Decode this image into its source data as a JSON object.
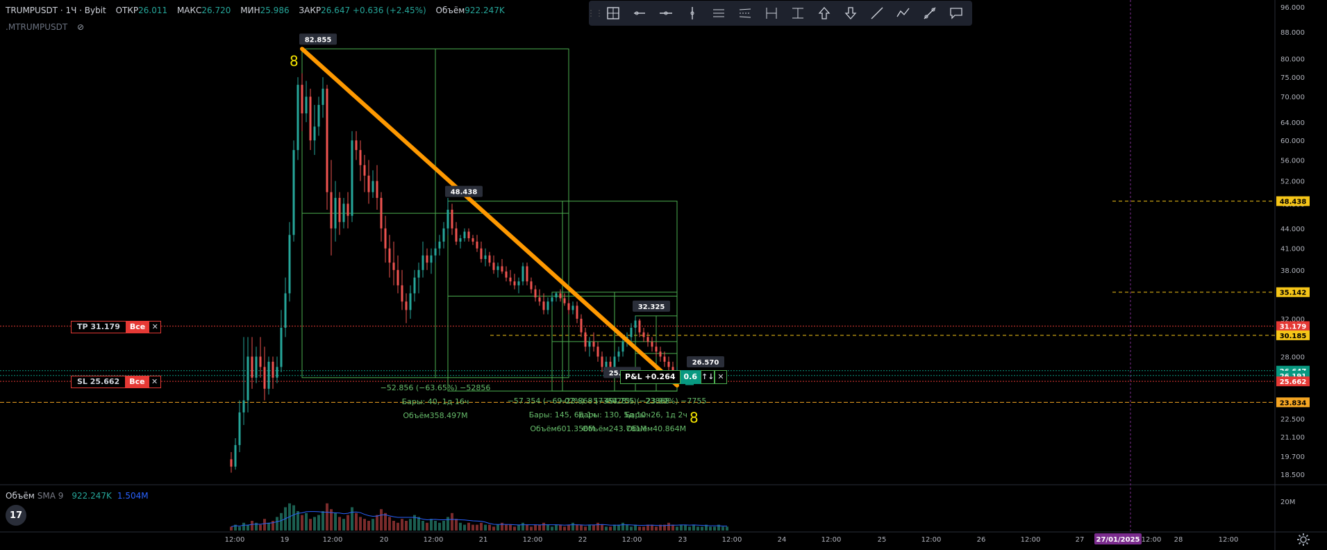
{
  "header": {
    "symbol": "TRUMPUSDT · 1Ч · Bybit",
    "open_label": "ОТКР",
    "open": "26.011",
    "high_label": "МАКС",
    "high": "26.720",
    "low_label": "МИН",
    "low": "25.986",
    "close_label": "ЗАКР",
    "close": "26.647",
    "change": "+0.636 (+2.45%)",
    "volume_label": "Объём",
    "volume": "922.247K",
    "sub_symbol": ".MTRUMPUSDT"
  },
  "toolbar": {
    "tools": [
      "layout-icon",
      "horizontal-ray-icon",
      "horizontal-line-icon",
      "vertical-line-icon",
      "parallel-channel-icon",
      "regression-channel-icon",
      "date-range-icon",
      "price-range-icon",
      "arrow-up-icon",
      "arrow-down-icon",
      "trend-line-icon",
      "path-icon",
      "fib-icon",
      "callout-icon"
    ]
  },
  "orders": {
    "tp": {
      "label": "TP 31.179",
      "all": "Все",
      "close": "✕"
    },
    "sl": {
      "label": "SL 25.662",
      "all": "Все",
      "close": "✕"
    }
  },
  "pnl": {
    "label": "P&L +0.264",
    "qty": "0.6",
    "arrows": "↑↓",
    "close": "✕"
  },
  "chart_data": {
    "type": "candlestick",
    "symbol": "TRUMPUSDT",
    "interval": "1Ч",
    "exchange": "Bybit",
    "y_scale": "log",
    "ylim": [
      18.0,
      97.0
    ],
    "y_ticks": [
      "96.000",
      "88.000",
      "80.000",
      "75.000",
      "70.000",
      "64.000",
      "60.000",
      "56.000",
      "52.000",
      "48.000",
      "44.000",
      "41.000",
      "38.000",
      "35.000",
      "32.000",
      "30.000",
      "28.000",
      "26.000",
      "24.000",
      "22.500",
      "21.100",
      "19.700",
      "18.500"
    ],
    "x_ticks": [
      "12:00",
      "19",
      "12:00",
      "20",
      "12:00",
      "21",
      "12:00",
      "22",
      "12:00",
      "23",
      "12:00",
      "24",
      "12:00",
      "25",
      "12:00",
      "26",
      "12:00",
      "27",
      "27/01/2025",
      "12:00",
      "28",
      "12:00"
    ],
    "x_hours_range": [
      0,
      222
    ],
    "candles": [
      [
        14,
        19.5,
        20,
        18.6,
        19
      ],
      [
        15,
        19,
        21,
        18.8,
        20.5
      ],
      [
        16,
        20.5,
        24,
        20,
        23
      ],
      [
        17,
        23,
        30,
        22,
        24
      ],
      [
        18,
        24,
        30,
        23,
        28
      ],
      [
        19,
        28,
        30,
        25,
        26
      ],
      [
        20,
        26,
        29,
        25.5,
        28
      ],
      [
        21,
        28,
        30,
        26,
        27
      ],
      [
        22,
        27,
        29,
        24,
        25
      ],
      [
        23,
        25,
        28,
        24.5,
        27.5
      ],
      [
        24,
        27.5,
        28,
        25,
        26
      ],
      [
        25,
        26,
        28,
        25.5,
        27
      ],
      [
        26,
        27,
        33,
        26.5,
        31
      ],
      [
        27,
        31,
        37,
        30,
        35
      ],
      [
        28,
        35,
        45,
        34,
        43
      ],
      [
        29,
        43,
        60,
        42,
        58
      ],
      [
        30,
        58,
        75,
        56,
        73
      ],
      [
        31,
        73,
        76,
        62,
        66
      ],
      [
        32,
        66,
        74,
        64,
        70
      ],
      [
        33,
        70,
        72,
        58,
        60
      ],
      [
        34,
        60,
        68,
        57,
        63
      ],
      [
        35,
        63,
        70,
        61,
        68
      ],
      [
        36,
        68,
        75,
        65,
        72
      ],
      [
        37,
        72,
        73,
        47,
        50
      ],
      [
        38,
        50,
        56,
        40,
        44
      ],
      [
        39,
        44,
        52,
        42,
        49
      ],
      [
        40,
        49,
        50,
        43,
        45
      ],
      [
        41,
        45,
        49,
        44,
        48
      ],
      [
        42,
        48,
        50,
        44,
        46
      ],
      [
        43,
        46,
        62,
        45,
        60
      ],
      [
        44,
        60,
        62,
        56,
        58
      ],
      [
        45,
        58,
        60,
        52,
        55
      ],
      [
        46,
        55,
        57,
        50,
        53
      ],
      [
        47,
        53,
        56,
        48,
        50
      ],
      [
        48,
        50,
        54,
        49,
        52
      ],
      [
        49,
        52,
        55,
        47,
        49
      ],
      [
        50,
        49,
        50,
        42,
        44
      ],
      [
        51,
        44,
        46,
        39,
        41
      ],
      [
        52,
        41,
        43,
        37,
        39
      ],
      [
        53,
        39,
        42,
        36,
        38
      ],
      [
        54,
        38,
        40,
        35,
        36
      ],
      [
        55,
        36,
        38,
        33,
        34
      ],
      [
        56,
        34,
        35,
        31.5,
        33
      ],
      [
        57,
        33,
        36,
        32,
        35
      ],
      [
        58,
        35,
        38,
        34,
        37
      ],
      [
        59,
        37,
        39,
        35,
        38
      ],
      [
        60,
        38,
        42,
        37,
        40
      ],
      [
        61,
        40,
        41,
        38,
        39
      ],
      [
        62,
        39,
        41,
        37.5,
        40
      ],
      [
        63,
        40,
        42,
        39,
        41
      ],
      [
        64,
        41,
        43,
        40,
        42
      ],
      [
        65,
        42,
        45,
        41,
        44
      ],
      [
        66,
        44,
        49,
        43,
        47
      ],
      [
        67,
        47,
        48,
        43,
        44
      ],
      [
        68,
        44,
        45,
        41.5,
        42
      ],
      [
        69,
        42,
        43,
        41,
        42.5
      ],
      [
        70,
        42.5,
        44,
        42,
        43.5
      ],
      [
        71,
        43.5,
        44,
        42,
        42.5
      ],
      [
        72,
        42.5,
        43,
        41.5,
        42
      ],
      [
        73,
        42,
        43,
        40.5,
        41
      ],
      [
        74,
        41,
        42,
        39,
        39.5
      ],
      [
        75,
        39.5,
        41,
        38.5,
        40
      ],
      [
        76,
        40,
        40.5,
        38.5,
        39
      ],
      [
        77,
        39,
        40,
        37.5,
        38
      ],
      [
        78,
        38,
        39,
        37,
        38.5
      ],
      [
        79,
        38.5,
        39.5,
        37.5,
        37.8
      ],
      [
        80,
        37.8,
        38.5,
        36.5,
        37
      ],
      [
        81,
        37,
        38,
        36,
        36.5
      ],
      [
        82,
        36.5,
        37.5,
        35.5,
        36
      ],
      [
        83,
        36,
        37,
        35,
        36.5
      ],
      [
        84,
        36.5,
        39,
        36,
        38.5
      ],
      [
        85,
        38.5,
        39,
        36,
        36.5
      ],
      [
        86,
        36.5,
        37,
        35,
        35.5
      ],
      [
        87,
        35.5,
        36,
        34,
        34.5
      ],
      [
        88,
        34.5,
        35.5,
        33.5,
        34
      ],
      [
        89,
        34,
        35,
        32.5,
        33
      ],
      [
        90,
        33,
        34.5,
        32.5,
        34
      ],
      [
        91,
        34,
        35,
        33.5,
        34.5
      ],
      [
        92,
        34.5,
        35.2,
        34,
        35
      ],
      [
        93,
        35,
        35.5,
        34,
        34.4
      ],
      [
        94,
        34.4,
        35,
        33.5,
        33.8
      ],
      [
        95,
        33.8,
        34.2,
        32.5,
        33
      ],
      [
        96,
        33,
        34,
        32.5,
        33.5
      ],
      [
        97,
        33.5,
        34,
        31.5,
        32
      ],
      [
        98,
        32,
        32.5,
        30,
        30.5
      ],
      [
        99,
        30.5,
        31,
        28.5,
        29
      ],
      [
        100,
        29,
        30,
        28,
        29.5
      ],
      [
        101,
        29.5,
        30.5,
        28.5,
        29
      ],
      [
        102,
        29,
        29.5,
        27.5,
        28
      ],
      [
        103,
        28,
        28.5,
        26.5,
        27
      ],
      [
        104,
        27,
        28,
        26.5,
        27.5
      ],
      [
        105,
        27.5,
        28,
        26.5,
        27
      ],
      [
        106,
        27,
        28.5,
        26.8,
        28
      ],
      [
        107,
        28,
        29,
        27.5,
        28.5
      ],
      [
        108,
        28.5,
        30,
        28,
        29.5
      ],
      [
        109,
        29.5,
        30.5,
        29,
        30
      ],
      [
        110,
        30,
        31.5,
        29.5,
        31
      ],
      [
        111,
        31,
        32.3,
        30.5,
        31.8
      ],
      [
        112,
        31.8,
        32,
        30,
        30.5
      ],
      [
        113,
        30.5,
        31,
        29.5,
        30
      ],
      [
        114,
        30,
        30.5,
        29,
        29.5
      ],
      [
        115,
        29.5,
        30,
        28.5,
        29
      ],
      [
        116,
        29,
        29.5,
        28,
        28.5
      ],
      [
        117,
        28.5,
        29,
        27.5,
        28
      ],
      [
        118,
        28,
        28.5,
        27,
        27.5
      ],
      [
        119,
        27.5,
        28,
        26.5,
        27
      ],
      [
        120,
        27,
        27.5,
        26,
        26.3
      ],
      [
        121,
        26.3,
        27,
        25.8,
        26.6
      ]
    ],
    "volume": {
      "label": "Объём",
      "sma_label": "SMA 9",
      "value": "922.247K",
      "sma": "1.504M",
      "y_tick": "20M",
      "bars": [
        2,
        3,
        2,
        4,
        3,
        5,
        4,
        3,
        6,
        4,
        5,
        7,
        9,
        12,
        14,
        13,
        10,
        8,
        9,
        6,
        7,
        8,
        10,
        14,
        11,
        9,
        7,
        6,
        8,
        12,
        9,
        7,
        6,
        5,
        6,
        8,
        11,
        9,
        7,
        5,
        4,
        6,
        5,
        6,
        8,
        7,
        5,
        4,
        6,
        5,
        4,
        5,
        7,
        9,
        6,
        4,
        3,
        4,
        3,
        3,
        4,
        3,
        3,
        2,
        3,
        4,
        3,
        3,
        2,
        3,
        4,
        3,
        2,
        3,
        3,
        4,
        3,
        2,
        3,
        3,
        2,
        3,
        4,
        3,
        3,
        2,
        3,
        3,
        4,
        3,
        2,
        2,
        3,
        3,
        4,
        3,
        2,
        3,
        2,
        2,
        3,
        3,
        2,
        3,
        3,
        4,
        3,
        2,
        3,
        3,
        2,
        3,
        2,
        2,
        3,
        2,
        2,
        3,
        2,
        2
      ]
    },
    "price_labels": [
      {
        "value": 48.438,
        "text": "48.438",
        "color": "#f5c518"
      },
      {
        "value": 35.142,
        "text": "35.142",
        "color": "#f5c518"
      },
      {
        "value": 31.179,
        "text": "31.179",
        "color": "#e53935"
      },
      {
        "value": 30.185,
        "text": "30.185",
        "color": "#f5c518"
      },
      {
        "value": 26.647,
        "text": "26.647",
        "color": "#089981"
      },
      {
        "value": 26.191,
        "text": "26.191",
        "color": "#089981"
      },
      {
        "value": 25.662,
        "text": "25.662",
        "color": "#e53935"
      },
      {
        "value": 23.834,
        "text": "23.834",
        "color": "#f5a623"
      }
    ],
    "callouts": [
      {
        "text": "82.855",
        "t": 31,
        "p": 82.855
      },
      {
        "text": "48.438",
        "t": 66,
        "p": 48.438
      },
      {
        "text": "32.325",
        "t": 111,
        "p": 32.325
      },
      {
        "text": "25.587",
        "t": 104,
        "p": 25.587
      },
      {
        "text": "26.570",
        "t": 124,
        "p": 26.57
      }
    ],
    "trend_line": {
      "from": [
        31,
        82.855
      ],
      "to": [
        121,
        25.3
      ],
      "color": "#ff9900"
    },
    "wave_labels": [
      {
        "text": "8",
        "t": 28,
        "p": 78
      },
      {
        "text": "8",
        "t": 124,
        "p": 22.2
      }
    ],
    "measure_boxes": [
      {
        "t0": 31,
        "t1": 95,
        "p_top": 82.855,
        "p_bot": 26.0,
        "lines": [
          "−52.856 (−63.65%) −52856",
          "Бары: 40, 1д 16ч",
          "Объём358.497M"
        ]
      },
      {
        "t0": 66,
        "t1": 121,
        "p_top": 48.438,
        "p_bot": 24.8,
        "lines": [
          "−57.354 (−69.07%) −57354",
          "Бары: 145, 6д 1ч",
          "Объём601.356M"
        ]
      },
      {
        "t0": 91,
        "t1": 121,
        "p_top": 35.142,
        "p_bot": 24.8,
        "lines": [
          "−23.868 (−49.28%) −23868",
          "Бары: 130, 5д 10ч",
          "Объём243.761M"
        ]
      },
      {
        "t0": 111,
        "t1": 121,
        "p_top": 32.325,
        "p_bot": 24.8,
        "lines": [
          "−7.755 (−23.99%) −7755",
          "Бары: 26, 1д 2ч",
          "Объём40.864M"
        ]
      }
    ],
    "marker": {
      "text": "B",
      "t": 124,
      "p": 25.7
    },
    "colors": {
      "up": "#26a69a",
      "down": "#ef5350",
      "box": "#4caf50",
      "yellow": "#f5c518",
      "grid": "#1a1a1a"
    }
  }
}
